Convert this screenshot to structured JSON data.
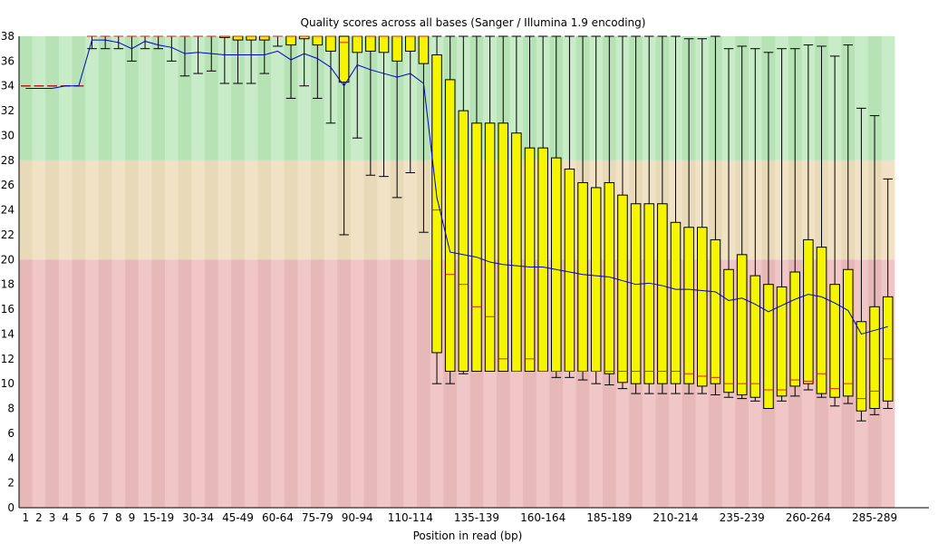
{
  "chart_data": {
    "type": "boxplot",
    "title": "Quality scores across all bases (Sanger / Illumina 1.9 encoding)",
    "xlabel": "Position in read (bp)",
    "ylabel": "",
    "ylim": [
      0,
      38
    ],
    "y_ticks": [
      0,
      2,
      4,
      6,
      8,
      10,
      12,
      14,
      16,
      18,
      20,
      22,
      24,
      26,
      28,
      30,
      32,
      34,
      36,
      38
    ],
    "x_tick_labels": [
      "1",
      "2",
      "3",
      "4",
      "5",
      "6",
      "7",
      "8",
      "9",
      "15-19",
      "30-34",
      "45-49",
      "60-64",
      "75-79",
      "90-94",
      "110-114",
      "135-139",
      "160-164",
      "185-189",
      "210-214",
      "235-239",
      "260-264",
      "285-289"
    ],
    "x_tick_positions": [
      1,
      2,
      3,
      4,
      5,
      6,
      7,
      8,
      9,
      11,
      14,
      17,
      20,
      23,
      26,
      30,
      35,
      40,
      45,
      50,
      55,
      60,
      65
    ],
    "quality_bands": [
      {
        "from": 28,
        "to": 38,
        "colors": [
          "#b6e2b6",
          "#c7ecc7"
        ]
      },
      {
        "from": 20,
        "to": 28,
        "colors": [
          "#e8d9b9",
          "#f2e2c5"
        ]
      },
      {
        "from": 0,
        "to": 20,
        "colors": [
          "#e6b8b8",
          "#f0c6c6"
        ]
      }
    ],
    "colors": {
      "box": "#f5f500",
      "median": "#e02020",
      "mean": "#0000cc",
      "whisker": "#000000"
    },
    "series": [
      {
        "name": "boxes",
        "values": [
          [
            34,
            34,
            34,
            34,
            34
          ],
          [
            34,
            34,
            34,
            34,
            34
          ],
          [
            34,
            34,
            34,
            34,
            34
          ],
          [
            34,
            34,
            34,
            34,
            34
          ],
          [
            34,
            34,
            34,
            34,
            34
          ],
          [
            37,
            38,
            38,
            38,
            38
          ],
          [
            37,
            38,
            38,
            38,
            38
          ],
          [
            37,
            38,
            38,
            38,
            38
          ],
          [
            36,
            38,
            38,
            38,
            38
          ],
          [
            37,
            38,
            38,
            38,
            38
          ],
          [
            37,
            38,
            38,
            38,
            38
          ],
          [
            36,
            38,
            38,
            38,
            38
          ],
          [
            34.8,
            38,
            38,
            38,
            38
          ],
          [
            35,
            38,
            38,
            38,
            38
          ],
          [
            35.2,
            38,
            38,
            38,
            38
          ],
          [
            34.2,
            37.9,
            38,
            38,
            38
          ],
          [
            34.2,
            37.7,
            38,
            38,
            38
          ],
          [
            34.2,
            37.7,
            38,
            38,
            38
          ],
          [
            35,
            37.7,
            38,
            38,
            38
          ],
          [
            37.2,
            38,
            38,
            38,
            38
          ],
          [
            33,
            37.3,
            38,
            38,
            38
          ],
          [
            34,
            37.8,
            38,
            38,
            38
          ],
          [
            33,
            37.3,
            38,
            38,
            38
          ],
          [
            31,
            36.8,
            38,
            38,
            38
          ],
          [
            22,
            34.3,
            37.5,
            38,
            38
          ],
          [
            29.8,
            36.7,
            38,
            38,
            38
          ],
          [
            26.8,
            36.8,
            38,
            38,
            38
          ],
          [
            26.7,
            36.7,
            38,
            38,
            38
          ],
          [
            25,
            36,
            38,
            38,
            38
          ],
          [
            27,
            36.8,
            38,
            38,
            38
          ],
          [
            22.2,
            35.8,
            38,
            38,
            38
          ],
          [
            10,
            12.5,
            24,
            36.5,
            38
          ],
          [
            10,
            11,
            18.8,
            34.5,
            38
          ],
          [
            10.8,
            11,
            18,
            32,
            38
          ],
          [
            11,
            11,
            16.2,
            31,
            38
          ],
          [
            11,
            11,
            15.4,
            31,
            38
          ],
          [
            11,
            11,
            12,
            31,
            38
          ],
          [
            11,
            11,
            11,
            30.2,
            38
          ],
          [
            11,
            11,
            12,
            29,
            38
          ],
          [
            11,
            11,
            11,
            29,
            38
          ],
          [
            10.5,
            11,
            11,
            28.2,
            38
          ],
          [
            10.5,
            11,
            11,
            27.3,
            38
          ],
          [
            10.3,
            11,
            11,
            26.2,
            38
          ],
          [
            10,
            11,
            11,
            25.8,
            38
          ],
          [
            9.9,
            10.8,
            11,
            26.2,
            38
          ],
          [
            9.6,
            10.1,
            11,
            25.2,
            38
          ],
          [
            9.2,
            10,
            11,
            24.5,
            38
          ],
          [
            9.2,
            10,
            11,
            24.5,
            38
          ],
          [
            9.2,
            10,
            11,
            24.5,
            38
          ],
          [
            9.2,
            10,
            11,
            23,
            38
          ],
          [
            9.2,
            10,
            10.8,
            22.6,
            37.8
          ],
          [
            9.2,
            9.8,
            10.6,
            22.6,
            37.8
          ],
          [
            9.1,
            10,
            10.5,
            21.6,
            38
          ],
          [
            8.9,
            9.3,
            10,
            19.2,
            37
          ],
          [
            8.8,
            9.1,
            10,
            20.4,
            37.2
          ],
          [
            8.6,
            8.9,
            10,
            18.7,
            37
          ],
          [
            8.2,
            8,
            9.5,
            18,
            36.7
          ],
          [
            8.6,
            9,
            9.5,
            17.8,
            37
          ],
          [
            9,
            9.8,
            10.3,
            19,
            37
          ],
          [
            9.5,
            10,
            10.2,
            21.6,
            37.3
          ],
          [
            8.9,
            9.2,
            10.8,
            21,
            37.2
          ],
          [
            8.2,
            8.9,
            9.6,
            18,
            36.4
          ],
          [
            8.4,
            9,
            10,
            19.2,
            37.3
          ],
          [
            7,
            7.8,
            8.8,
            15,
            32.2
          ],
          [
            7.5,
            8,
            9.4,
            16.2,
            31.6
          ],
          [
            8,
            8.6,
            12,
            17,
            26.5
          ]
        ]
      },
      {
        "name": "mean",
        "values": [
          33.8,
          33.8,
          33.8,
          34,
          34,
          37.7,
          37.7,
          37.5,
          37,
          37.6,
          37.3,
          37.1,
          36.6,
          36.7,
          36.6,
          36.5,
          36.5,
          36.5,
          36.5,
          36.8,
          36.1,
          36.6,
          36.2,
          35.5,
          34,
          35.7,
          35.3,
          35,
          34.7,
          35,
          34.2,
          25,
          20.6,
          20.4,
          20.2,
          19.8,
          19.6,
          19.5,
          19.4,
          19.4,
          19.2,
          19,
          18.8,
          18.7,
          18.6,
          18.3,
          18,
          18.1,
          17.9,
          17.6,
          17.6,
          17.5,
          17.4,
          16.7,
          16.9,
          16.4,
          15.8,
          16.3,
          16.8,
          17.2,
          17,
          16.5,
          15.9,
          14,
          14.3,
          14.6
        ]
      }
    ]
  }
}
